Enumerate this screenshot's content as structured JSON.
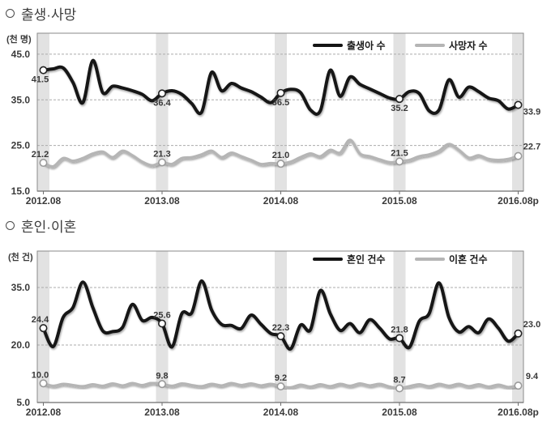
{
  "chart_data": [
    {
      "type": "line",
      "id": "births-deaths",
      "title_bullet": "○",
      "title": "출생·사망",
      "unit_label": "(천 명)",
      "x_tick_labels": [
        "2012.08",
        "2013.08",
        "2014.08",
        "2015.08",
        "2016.08p"
      ],
      "x_tick_indices": [
        0,
        12,
        24,
        36,
        48
      ],
      "y_tick_labels": [
        "45.0",
        "35.0",
        "25.0",
        "15.0"
      ],
      "y_ticks": [
        45.0,
        35.0,
        25.0,
        15.0
      ],
      "ylim": [
        15,
        49.6
      ],
      "grid": "horizontal-dashed",
      "legend_position": "top-inside",
      "band_color": "#e2e2e2",
      "grid_color": "#ababab",
      "frame_color": "#8a8a8a",
      "axis_color": "#6e6e6e",
      "series": [
        {
          "name": "출생아 수",
          "slug": "births",
          "color": "#141414",
          "line_width": 4,
          "values": [
            41.5,
            41.8,
            42.0,
            38.8,
            34.4,
            43.6,
            36.6,
            38.0,
            37.6,
            37.0,
            36.2,
            34.8,
            36.4,
            37.0,
            36.2,
            34.2,
            32.3,
            41.0,
            37.0,
            38.6,
            37.6,
            36.8,
            35.6,
            34.4,
            36.5,
            37.3,
            36.6,
            32.8,
            32.6,
            41.5,
            35.8,
            40.0,
            38.4,
            37.4,
            36.4,
            35.4,
            35.2,
            36.8,
            36.4,
            32.6,
            32.8,
            39.4,
            35.6,
            37.8,
            36.8,
            35.4,
            34.8,
            33.0,
            33.9
          ],
          "annotated": [
            {
              "index": 0,
              "label": "41.5",
              "side": "below"
            },
            {
              "index": 12,
              "label": "36.4",
              "side": "below"
            },
            {
              "index": 24,
              "label": "36.5",
              "side": "below"
            },
            {
              "index": 36,
              "label": "35.2",
              "side": "below"
            },
            {
              "index": 48,
              "label": "33.9",
              "side": "below"
            }
          ]
        },
        {
          "name": "사망자 수",
          "slug": "deaths",
          "color": "#b5b5b5",
          "line_width": 3.5,
          "values": [
            21.2,
            20.4,
            22.2,
            21.6,
            22.2,
            23.2,
            23.6,
            22.4,
            23.8,
            22.8,
            21.4,
            20.6,
            21.3,
            20.9,
            22.2,
            22.4,
            23.0,
            23.8,
            22.4,
            23.4,
            22.6,
            21.8,
            20.9,
            21.1,
            21.0,
            21.4,
            22.4,
            23.2,
            22.6,
            24.0,
            23.4,
            26.2,
            23.2,
            22.6,
            21.9,
            21.3,
            21.5,
            21.8,
            22.6,
            23.0,
            23.8,
            25.3,
            24.0,
            22.3,
            22.8,
            22.0,
            21.8,
            22.0,
            22.7
          ],
          "annotated": [
            {
              "index": 0,
              "label": "21.2",
              "side": "above"
            },
            {
              "index": 12,
              "label": "21.3",
              "side": "above"
            },
            {
              "index": 24,
              "label": "21.0",
              "side": "above"
            },
            {
              "index": 36,
              "label": "21.5",
              "side": "above"
            },
            {
              "index": 48,
              "label": "22.7",
              "side": "above"
            }
          ]
        }
      ]
    },
    {
      "type": "line",
      "id": "marriage-divorce",
      "title_bullet": "○",
      "title": "혼인·이혼",
      "unit_label": "(천 건)",
      "x_tick_labels": [
        "2012.08",
        "2013.08",
        "2014.08",
        "2015.08",
        "2016.08p"
      ],
      "x_tick_indices": [
        0,
        12,
        24,
        36,
        48
      ],
      "y_tick_labels": [
        "35.0",
        "20.0",
        "5.0"
      ],
      "y_ticks": [
        35.0,
        20.0,
        5.0
      ],
      "ylim": [
        5,
        44.5
      ],
      "grid": "horizontal-dashed",
      "legend_position": "top-inside",
      "band_color": "#e2e2e2",
      "grid_color": "#ababab",
      "frame_color": "#8a8a8a",
      "axis_color": "#6e6e6e",
      "series": [
        {
          "name": "혼인 건수",
          "slug": "marriages",
          "color": "#141414",
          "line_width": 4,
          "values": [
            24.4,
            19.6,
            27.2,
            29.8,
            36.4,
            29.8,
            23.7,
            23.5,
            24.6,
            30.6,
            26.4,
            27.2,
            25.6,
            19.5,
            28.2,
            28.4,
            36.7,
            29.2,
            25.4,
            25.1,
            24.3,
            27.8,
            25.4,
            23.0,
            22.3,
            19.0,
            25.2,
            24.0,
            34.2,
            28.2,
            23.8,
            25.6,
            23.2,
            26.6,
            24.4,
            21.6,
            21.8,
            19.4,
            26.2,
            28.2,
            36.2,
            27.2,
            23.4,
            24.8,
            23.2,
            26.8,
            24.4,
            21.0,
            23.0
          ],
          "annotated": [
            {
              "index": 0,
              "label": "24.4",
              "side": "above"
            },
            {
              "index": 12,
              "label": "25.6",
              "side": "above"
            },
            {
              "index": 24,
              "label": "22.3",
              "side": "above"
            },
            {
              "index": 36,
              "label": "21.8",
              "side": "above"
            },
            {
              "index": 48,
              "label": "23.0",
              "side": "above"
            }
          ]
        },
        {
          "name": "이혼 건수",
          "slug": "divorces",
          "color": "#b5b5b5",
          "line_width": 3.5,
          "values": [
            10.0,
            9.3,
            9.8,
            9.5,
            9.2,
            9.7,
            9.3,
            9.9,
            9.4,
            10.0,
            9.5,
            10.1,
            9.8,
            9.3,
            9.9,
            9.5,
            9.2,
            9.8,
            9.4,
            10.0,
            9.5,
            9.9,
            9.4,
            9.8,
            9.2,
            8.9,
            9.6,
            9.1,
            9.7,
            9.2,
            9.8,
            9.3,
            9.9,
            9.4,
            9.8,
            9.1,
            8.7,
            9.2,
            9.7,
            9.2,
            9.8,
            9.3,
            9.8,
            9.2,
            9.7,
            9.1,
            9.6,
            9.0,
            9.4
          ],
          "annotated": [
            {
              "index": 0,
              "label": "10.0",
              "side": "above"
            },
            {
              "index": 12,
              "label": "9.8",
              "side": "above"
            },
            {
              "index": 24,
              "label": "9.2",
              "side": "above"
            },
            {
              "index": 36,
              "label": "8.7",
              "side": "above"
            },
            {
              "index": 48,
              "label": "9.4",
              "side": "above"
            }
          ]
        }
      ]
    }
  ]
}
